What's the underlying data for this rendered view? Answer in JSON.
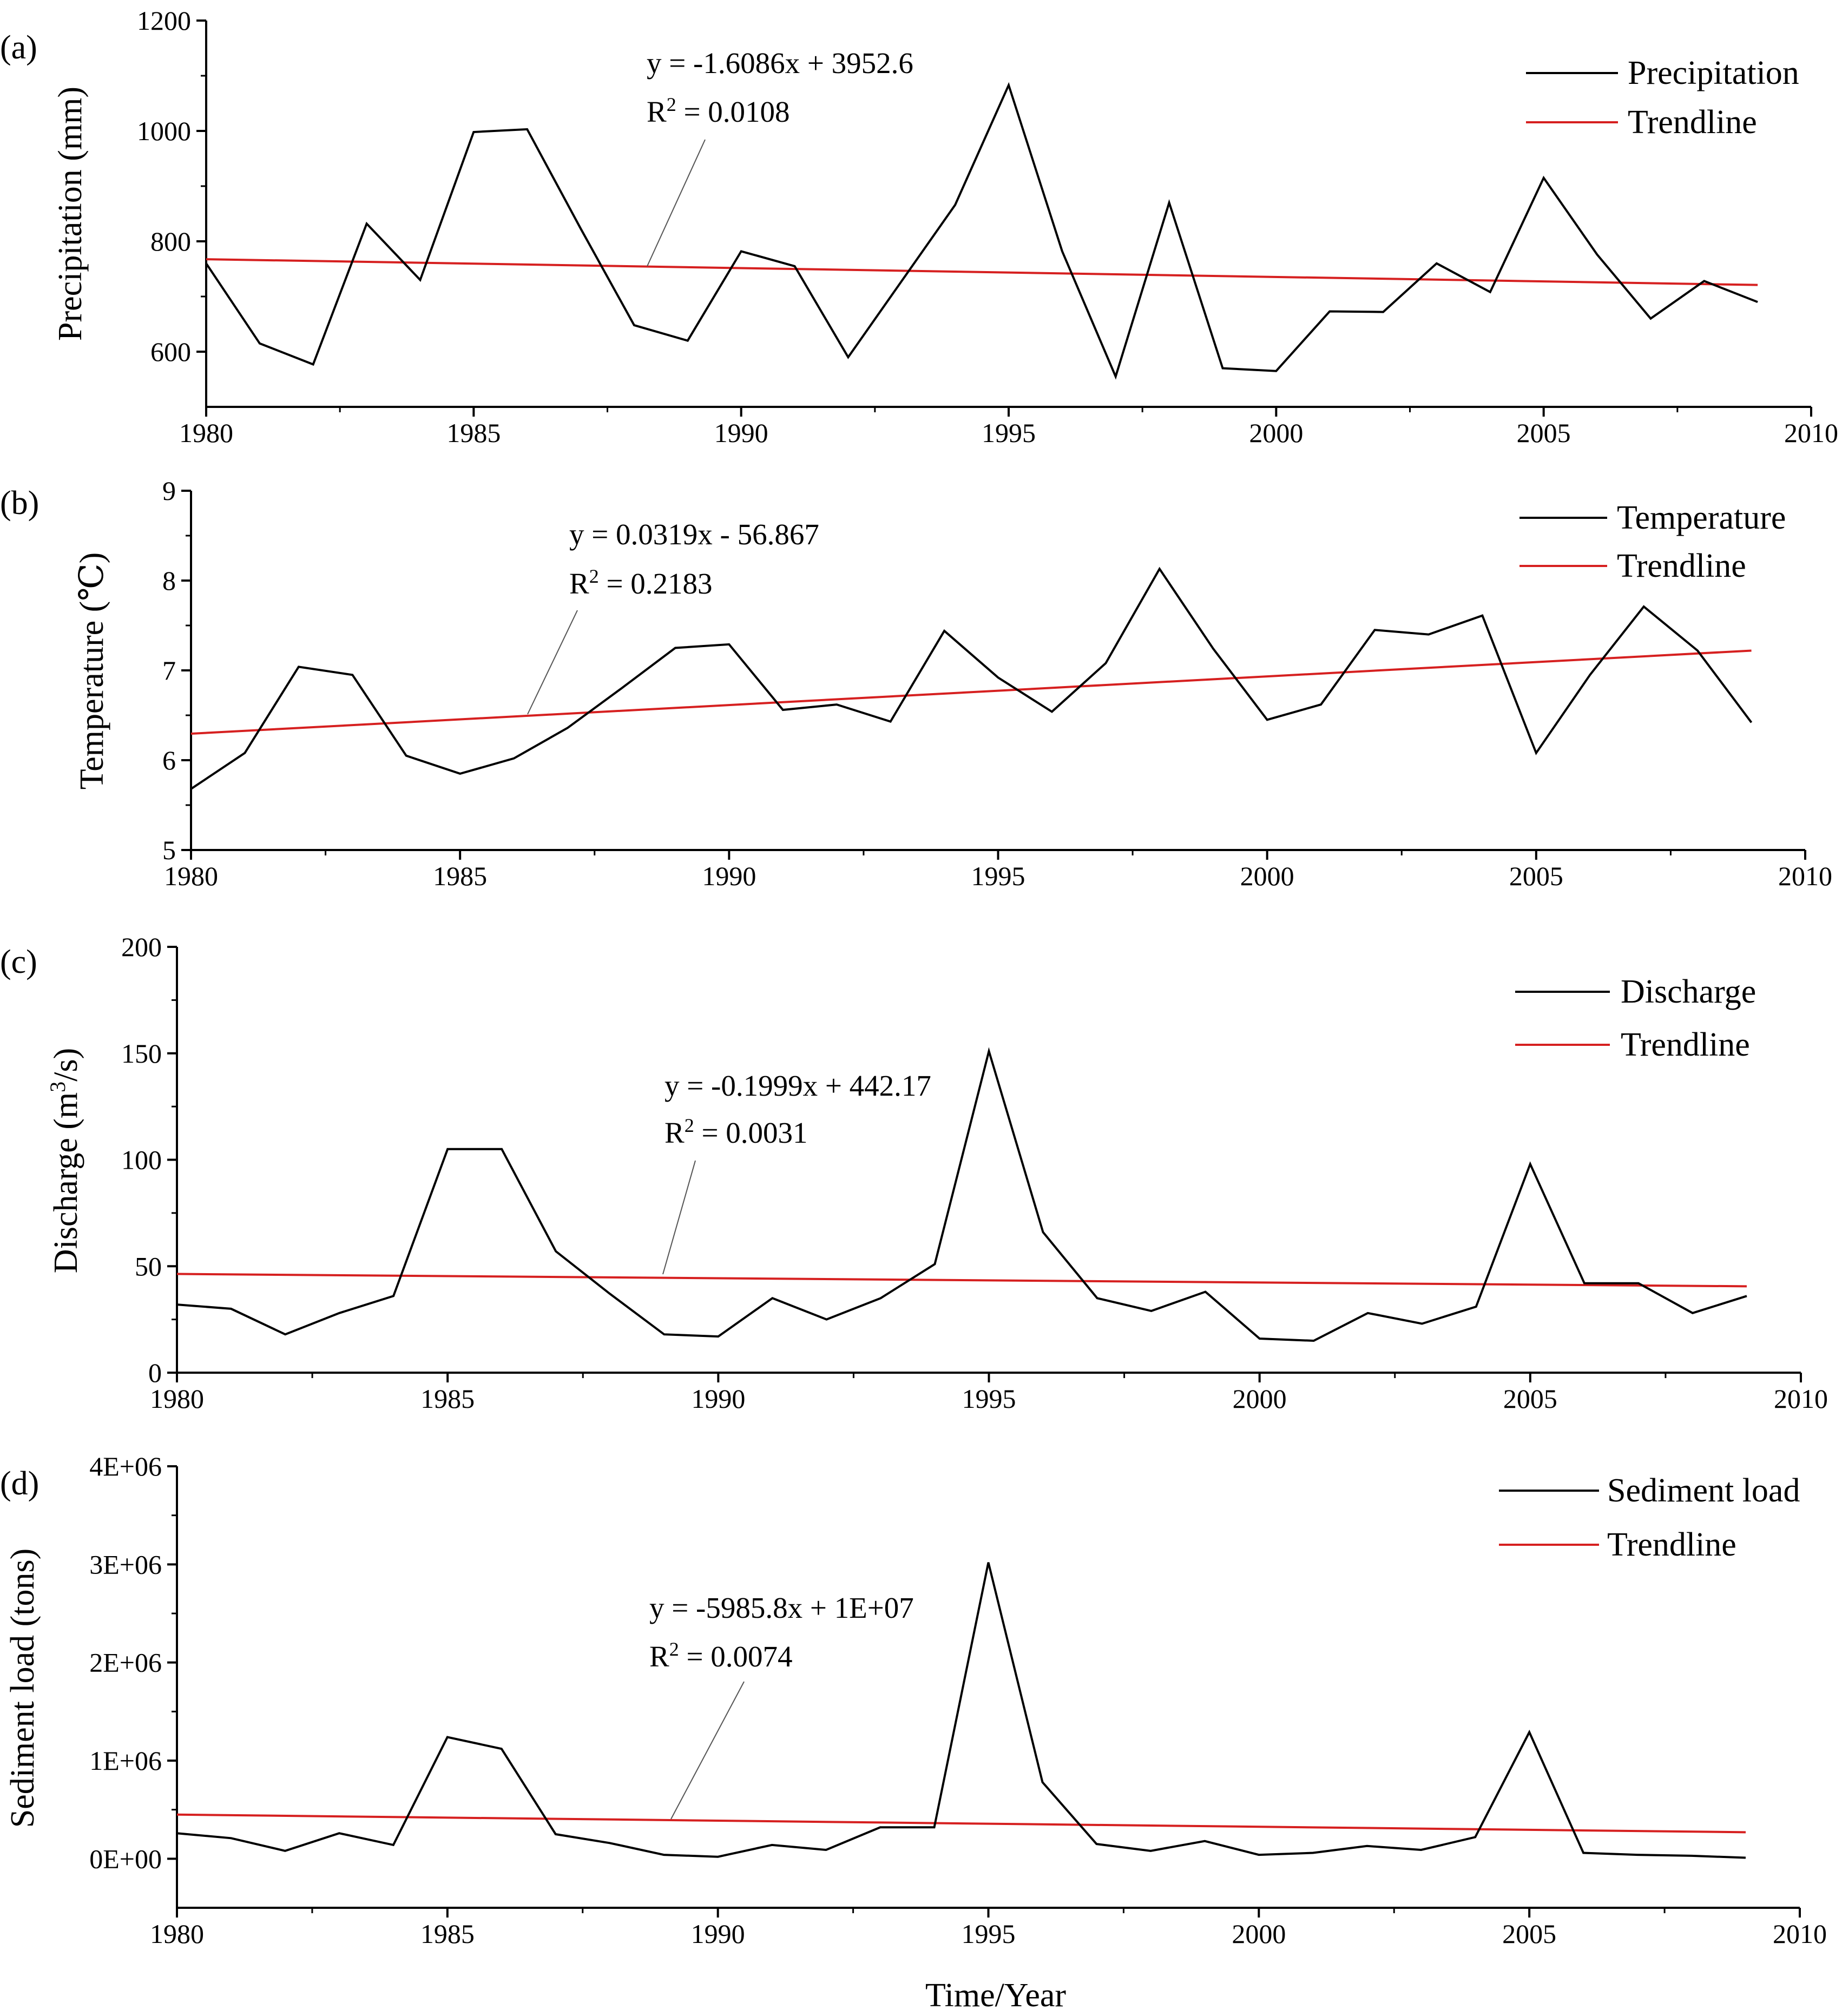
{
  "figure": {
    "x_title": "Time/Year"
  },
  "chart_data": [
    {
      "type": "line",
      "panel_label": "(a)",
      "ylabel": "Precipitation (mm)",
      "ylabel_parts": [
        "Precipitation (mm)"
      ],
      "xlim": [
        1980,
        2010
      ],
      "ylim": [
        500,
        1200
      ],
      "x_ticks": [
        1980,
        1985,
        1990,
        1995,
        2000,
        2005,
        2010
      ],
      "y_ticks": [
        600,
        800,
        1000,
        1200
      ],
      "x": [
        1980,
        1981,
        1982,
        1983,
        1984,
        1985,
        1986,
        1987,
        1988,
        1989,
        1990,
        1991,
        1992,
        1993,
        1994,
        1995,
        1996,
        1997,
        1998,
        1999,
        2000,
        2001,
        2002,
        2003,
        2004,
        2005,
        2006,
        2007,
        2008,
        2009
      ],
      "series": [
        {
          "name": "Precipitation",
          "color": "#000000",
          "values": [
            760,
            615,
            577,
            832,
            730,
            998,
            1003,
            823,
            648,
            620,
            782,
            755,
            590,
            728,
            866,
            1083,
            782,
            555,
            870,
            570,
            565,
            673,
            672,
            760,
            708,
            915,
            776,
            660,
            728,
            690
          ]
        },
        {
          "name": "Trendline",
          "color": "#d62020",
          "trend": {
            "slope": -1.6086,
            "intercept": 3952.6
          }
        }
      ],
      "legend_position": "top-right",
      "equation": {
        "line1": "y = -1.6086x + 3952.6",
        "r2_prefix": "R",
        "r2_sup": "2",
        "r2_value": " = 0.0108"
      }
    },
    {
      "type": "line",
      "panel_label": "(b)",
      "ylabel": "Temperature (℃)",
      "ylabel_parts": [
        "Temperature (℃)"
      ],
      "xlim": [
        1980,
        2010
      ],
      "ylim": [
        5,
        9
      ],
      "x_ticks": [
        1980,
        1985,
        1990,
        1995,
        2000,
        2005,
        2010
      ],
      "y_ticks": [
        5,
        6,
        7,
        8,
        9
      ],
      "x": [
        1980,
        1981,
        1982,
        1983,
        1984,
        1985,
        1986,
        1987,
        1988,
        1989,
        1990,
        1991,
        1992,
        1993,
        1994,
        1995,
        1996,
        1997,
        1998,
        1999,
        2000,
        2001,
        2002,
        2003,
        2004,
        2005,
        2006,
        2007,
        2008,
        2009
      ],
      "series": [
        {
          "name": "Temperature",
          "color": "#000000",
          "values": [
            5.68,
            6.08,
            7.04,
            6.95,
            6.05,
            5.85,
            6.02,
            6.36,
            6.8,
            7.25,
            7.29,
            6.56,
            6.62,
            6.43,
            7.44,
            6.92,
            6.54,
            7.08,
            8.13,
            7.24,
            6.45,
            6.62,
            7.45,
            7.4,
            7.61,
            6.08,
            6.95,
            7.71,
            7.22,
            6.42
          ]
        },
        {
          "name": "Trendline",
          "color": "#d62020",
          "trend": {
            "slope": 0.0319,
            "intercept": -56.867
          }
        }
      ],
      "legend_position": "top-right",
      "equation": {
        "line1": "y = 0.0319x - 56.867",
        "r2_prefix": "R",
        "r2_sup": "2",
        "r2_value": " = 0.2183"
      }
    },
    {
      "type": "line",
      "panel_label": "(c)",
      "ylabel": "Discharge (m3/s)",
      "ylabel_parts": [
        "Discharge (m",
        "3",
        "/s)"
      ],
      "xlim": [
        1980,
        2010
      ],
      "ylim": [
        0,
        200
      ],
      "x_ticks": [
        1980,
        1985,
        1990,
        1995,
        2000,
        2005,
        2010
      ],
      "y_ticks": [
        0,
        50,
        100,
        150,
        200
      ],
      "x": [
        1980,
        1981,
        1982,
        1983,
        1984,
        1985,
        1986,
        1987,
        1988,
        1989,
        1990,
        1991,
        1992,
        1993,
        1994,
        1995,
        1996,
        1997,
        1998,
        1999,
        2000,
        2001,
        2002,
        2003,
        2004,
        2005,
        2006,
        2007,
        2008,
        2009
      ],
      "series": [
        {
          "name": "Discharge",
          "color": "#000000",
          "values": [
            32,
            30,
            18,
            28,
            36,
            105,
            105,
            57,
            37,
            18,
            17,
            35,
            25,
            35,
            51,
            151,
            66,
            35,
            29,
            38,
            16,
            15,
            28,
            23,
            31,
            98,
            42,
            42,
            28,
            36
          ]
        },
        {
          "name": "Trendline",
          "color": "#d62020",
          "trend": {
            "slope": -0.1999,
            "intercept": 442.17
          }
        }
      ],
      "legend_position": "top-right",
      "equation": {
        "line1": "y = -0.1999x + 442.17",
        "r2_prefix": "R",
        "r2_sup": "2",
        "r2_value": " = 0.0031"
      }
    },
    {
      "type": "line",
      "panel_label": "(d)",
      "ylabel": "Sediment load (tons)",
      "ylabel_parts": [
        "Sediment load (tons)"
      ],
      "xlim": [
        1980,
        2010
      ],
      "ylim": [
        -500000,
        4000000
      ],
      "x_ticks": [
        1980,
        1985,
        1990,
        1995,
        2000,
        2005,
        2010
      ],
      "y_ticks": [
        0,
        1000000,
        2000000,
        3000000,
        4000000
      ],
      "y_tick_labels": [
        "0E+00",
        "1E+06",
        "2E+06",
        "3E+06",
        "4E+06"
      ],
      "x": [
        1980,
        1981,
        1982,
        1983,
        1984,
        1985,
        1986,
        1987,
        1988,
        1989,
        1990,
        1991,
        1992,
        1993,
        1994,
        1995,
        1996,
        1997,
        1998,
        1999,
        2000,
        2001,
        2002,
        2003,
        2004,
        2005,
        2006,
        2007,
        2008,
        2009
      ],
      "series": [
        {
          "name": "Sediment load",
          "color": "#000000",
          "values": [
            260000,
            210000,
            80000,
            260000,
            140000,
            1240000,
            1120000,
            250000,
            160000,
            40000,
            20000,
            140000,
            90000,
            320000,
            320000,
            3020000,
            780000,
            150000,
            80000,
            180000,
            40000,
            60000,
            130000,
            90000,
            220000,
            1290000,
            60000,
            40000,
            30000,
            10000
          ]
        },
        {
          "name": "Trendline",
          "color": "#d62020",
          "trend_points": {
            "x": [
              1980,
              2009
            ],
            "y": [
              450000,
              270000
            ]
          }
        }
      ],
      "legend_position": "top-right",
      "equation": {
        "line1": "y = -5985.8x + 1E+07",
        "r2_prefix": "R",
        "r2_sup": "2",
        "r2_value": " = 0.0074"
      }
    }
  ]
}
